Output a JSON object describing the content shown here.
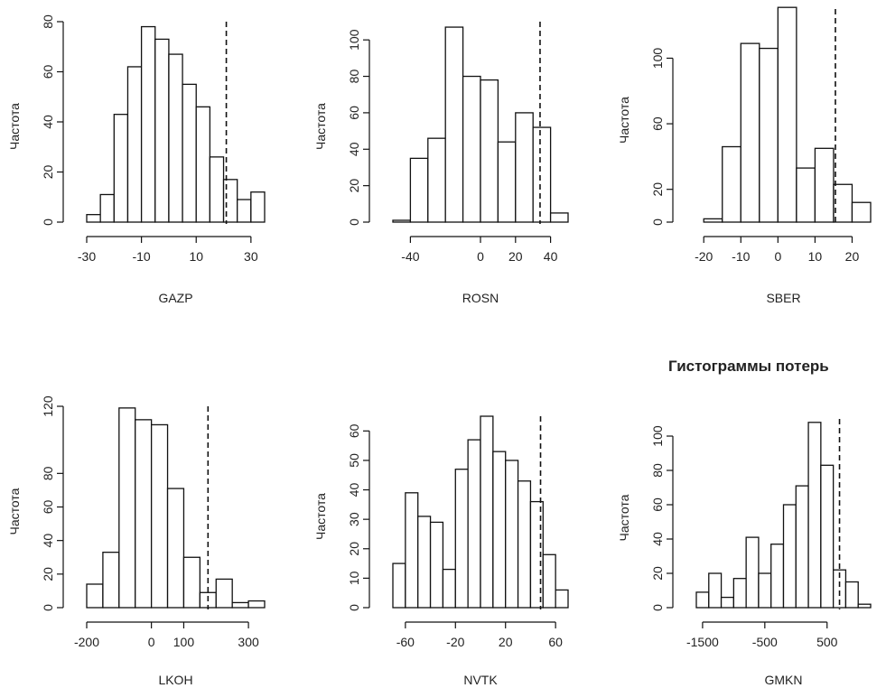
{
  "figure_title": "Гистограммы потерь",
  "chart_data": [
    {
      "type": "bar",
      "title": "",
      "xlabel": "GAZP",
      "ylabel": "Частота",
      "xlim": [
        -30,
        35
      ],
      "ylim": [
        0,
        80
      ],
      "xticks": [
        -30,
        -10,
        10,
        30
      ],
      "yticks": [
        0,
        20,
        40,
        60,
        80
      ],
      "bins": [
        -30,
        -25,
        -20,
        -15,
        -10,
        -5,
        0,
        5,
        10,
        15,
        20,
        25,
        30,
        35
      ],
      "counts": [
        3,
        11,
        43,
        62,
        78,
        73,
        67,
        55,
        46,
        26,
        17,
        9,
        12
      ],
      "vline": 21
    },
    {
      "type": "bar",
      "title": "",
      "xlabel": "ROSN",
      "ylabel": "Частота",
      "xlim": [
        -50,
        50
      ],
      "ylim": [
        0,
        110
      ],
      "xticks": [
        -40,
        0,
        20,
        40
      ],
      "yticks": [
        0,
        20,
        40,
        60,
        80,
        100
      ],
      "bins": [
        -50,
        -40,
        -30,
        -20,
        -10,
        0,
        10,
        20,
        30,
        40,
        50
      ],
      "counts": [
        1,
        35,
        46,
        107,
        80,
        78,
        44,
        60,
        52,
        5
      ],
      "vline": 34
    },
    {
      "type": "bar",
      "title": "",
      "xlabel": "SBER",
      "ylabel": "Частота",
      "xlim": [
        -22,
        25
      ],
      "ylim": [
        0,
        130
      ],
      "xticks": [
        -20,
        -10,
        0,
        10,
        20
      ],
      "yticks": [
        0,
        20,
        60,
        100
      ],
      "bins": [
        -20,
        -15,
        -10,
        -5,
        0,
        5,
        10,
        15,
        20,
        25
      ],
      "counts": [
        2,
        46,
        109,
        106,
        131,
        33,
        45,
        23,
        12
      ],
      "vline": 15.5
    },
    {
      "type": "bar",
      "title": "",
      "xlabel": "LKOH",
      "ylabel": "Частота",
      "xlim": [
        -200,
        350
      ],
      "ylim": [
        0,
        120
      ],
      "xticks": [
        -200,
        0,
        100,
        300
      ],
      "yticks": [
        0,
        20,
        40,
        60,
        80,
        120
      ],
      "bins": [
        -200,
        -150,
        -100,
        -50,
        0,
        50,
        100,
        150,
        200,
        250,
        300,
        350
      ],
      "counts": [
        14,
        33,
        119,
        112,
        109,
        71,
        30,
        9,
        17,
        3,
        4
      ],
      "vline": 175
    },
    {
      "type": "bar",
      "title": "",
      "xlabel": "NVTK",
      "ylabel": "Частота",
      "xlim": [
        -70,
        70
      ],
      "ylim": [
        0,
        65
      ],
      "xticks": [
        -60,
        -20,
        20,
        60
      ],
      "yticks": [
        0,
        10,
        20,
        30,
        40,
        50,
        60
      ],
      "bins": [
        -70,
        -60,
        -50,
        -40,
        -30,
        -20,
        -10,
        0,
        10,
        20,
        30,
        40,
        50,
        60,
        70
      ],
      "counts": [
        15,
        39,
        31,
        29,
        13,
        47,
        57,
        65,
        53,
        50,
        43,
        36,
        18,
        6
      ],
      "vline": 48
    },
    {
      "type": "bar",
      "title": "",
      "xlabel": "GMKN",
      "ylabel": "Частота",
      "xlim": [
        -1600,
        1200
      ],
      "ylim": [
        0,
        110
      ],
      "xticks": [
        -1500,
        -500,
        500
      ],
      "yticks": [
        0,
        20,
        40,
        60,
        80,
        100
      ],
      "bins": [
        -1600,
        -1400,
        -1200,
        -1000,
        -800,
        -600,
        -400,
        -200,
        0,
        200,
        400,
        600,
        800,
        1000,
        1200
      ],
      "counts": [
        9,
        20,
        6,
        17,
        41,
        20,
        37,
        60,
        71,
        108,
        83,
        22,
        15,
        2
      ],
      "vline": 700
    }
  ]
}
